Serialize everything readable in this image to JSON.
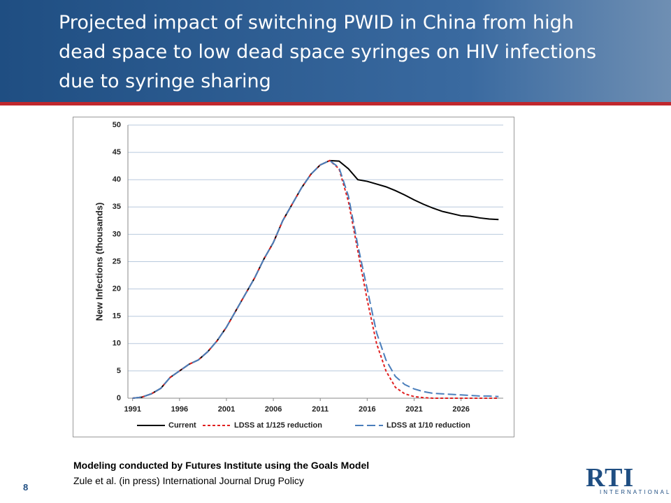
{
  "title": "Projected impact of switching PWID in China from high dead space to low dead space syringes on HIV infections due to syringe sharing",
  "footer": {
    "note_bold": "Modeling conducted by Futures Institute using the Goals Model",
    "note": "Zule et al. (in press) International Journal Drug Policy",
    "page": "8",
    "logo": "RTI",
    "logo_sub": "INTERNATIONAL"
  },
  "chart_data": {
    "type": "line",
    "ylabel": "New Infections (thousands)",
    "x": [
      1991,
      1992,
      1993,
      1994,
      1995,
      1996,
      1997,
      1998,
      1999,
      2000,
      2001,
      2002,
      2003,
      2004,
      2005,
      2006,
      2007,
      2008,
      2009,
      2010,
      2011,
      2012,
      2013,
      2014,
      2015,
      2016,
      2017,
      2018,
      2019,
      2020,
      2021,
      2022,
      2023,
      2024,
      2025,
      2026,
      2027,
      2028,
      2029,
      2030
    ],
    "xlim": [
      1990.5,
      2030.5
    ],
    "xticks": [
      1991,
      1996,
      2001,
      2006,
      2011,
      2016,
      2021,
      2026
    ],
    "ylim": [
      0,
      50
    ],
    "yticks": [
      0,
      5,
      10,
      15,
      20,
      25,
      30,
      35,
      40,
      45,
      50
    ],
    "grid": true,
    "legend": "bottom",
    "series": [
      {
        "name": "Current",
        "color": "#000000",
        "dash": "solid",
        "values": [
          0,
          0.2,
          0.8,
          1.8,
          3.8,
          5,
          6.2,
          7,
          8.5,
          10.5,
          13,
          16,
          19,
          22,
          25.5,
          28.5,
          32.5,
          35.5,
          38.5,
          41,
          42.7,
          43.5,
          43.4,
          42,
          40,
          39.7,
          39.2,
          38.7,
          38,
          37.2,
          36.3,
          35.5,
          34.8,
          34.2,
          33.8,
          33.4,
          33.3,
          33.0,
          32.8,
          32.7
        ]
      },
      {
        "name": "LDSS at 1/125 reduction",
        "color": "#e02020",
        "dash": "short",
        "values": [
          0,
          0.2,
          0.8,
          1.8,
          3.8,
          5,
          6.2,
          7,
          8.5,
          10.5,
          13,
          16,
          19,
          22,
          25.5,
          28.5,
          32.5,
          35.5,
          38.5,
          41,
          42.7,
          43.5,
          42,
          36,
          27,
          18,
          10,
          5,
          2,
          0.8,
          0.3,
          0.1,
          0,
          0,
          0,
          0,
          0,
          0,
          0,
          0
        ]
      },
      {
        "name": "LDSS at 1/10 reduction",
        "color": "#4a7ebb",
        "dash": "long",
        "values": [
          0,
          0.2,
          0.8,
          1.8,
          3.8,
          5,
          6.2,
          7,
          8.5,
          10.5,
          13,
          16,
          19,
          22,
          25.5,
          28.5,
          32.5,
          35.5,
          38.5,
          41,
          42.7,
          43.5,
          42.2,
          37,
          28,
          20,
          12,
          7,
          4,
          2.5,
          1.7,
          1.2,
          0.9,
          0.8,
          0.7,
          0.6,
          0.5,
          0.4,
          0.4,
          0.3
        ]
      }
    ]
  }
}
